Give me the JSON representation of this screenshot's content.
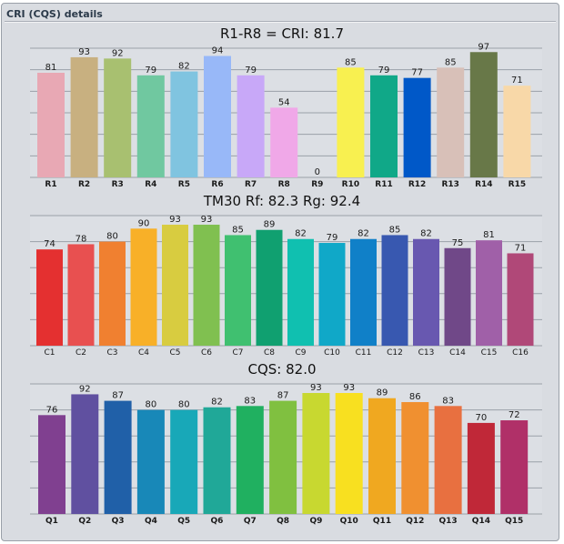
{
  "window": {
    "title": "CRI (CQS) details"
  },
  "chart_data": [
    {
      "type": "bar",
      "title": "R1-R8 = CRI: 81.7",
      "categories": [
        "R1",
        "R2",
        "R3",
        "R4",
        "R5",
        "R6",
        "R7",
        "R8",
        "R9",
        "R10",
        "R11",
        "R12",
        "R13",
        "R14",
        "R15"
      ],
      "values": [
        81,
        93,
        92,
        79,
        82,
        94,
        79,
        54,
        0,
        85,
        79,
        77,
        85,
        97,
        71
      ],
      "colors": [
        "#e8a8b4",
        "#c8b080",
        "#a8c070",
        "#70c8a0",
        "#80c4e0",
        "#98b8f8",
        "#c8a8f8",
        "#f0a8e8",
        "#c0c0c0",
        "#f8f050",
        "#10a888",
        "#0058c8",
        "#d8c0b8",
        "#687848",
        "#f8d8a8"
      ],
      "ylim": [
        0,
        100
      ],
      "grid": true
    },
    {
      "type": "bar",
      "title": "TM30  Rf: 82.3   Rg: 92.4",
      "categories": [
        "C1",
        "C2",
        "C3",
        "C4",
        "C5",
        "C6",
        "C7",
        "C8",
        "C9",
        "C10",
        "C11",
        "C12",
        "C13",
        "C14",
        "C15",
        "C16"
      ],
      "values": [
        74,
        78,
        80,
        90,
        93,
        93,
        85,
        89,
        82,
        79,
        82,
        85,
        82,
        75,
        81,
        71
      ],
      "colors": [
        "#e43030",
        "#e85050",
        "#f08030",
        "#f8b028",
        "#d8cc40",
        "#80c050",
        "#40c070",
        "#10a070",
        "#10c0b0",
        "#10a8c8",
        "#1080c8",
        "#3858b0",
        "#6858b0",
        "#704888",
        "#a060a8",
        "#b04878"
      ],
      "ylim": [
        0,
        100
      ],
      "grid": true
    },
    {
      "type": "bar",
      "title": "CQS: 82.0",
      "categories": [
        "Q1",
        "Q2",
        "Q3",
        "Q4",
        "Q5",
        "Q6",
        "Q7",
        "Q8",
        "Q9",
        "Q10",
        "Q11",
        "Q12",
        "Q13",
        "Q14",
        "Q15"
      ],
      "values": [
        76,
        92,
        87,
        80,
        80,
        82,
        83,
        87,
        93,
        93,
        89,
        86,
        83,
        70,
        72
      ],
      "colors": [
        "#804090",
        "#6050a0",
        "#2060a8",
        "#1888b8",
        "#18a8b8",
        "#20a898",
        "#20b060",
        "#80c040",
        "#c8d830",
        "#f8e020",
        "#f0a820",
        "#f09030",
        "#e87040",
        "#c02838",
        "#b03068"
      ],
      "ylim": [
        0,
        100
      ],
      "grid": true
    }
  ]
}
